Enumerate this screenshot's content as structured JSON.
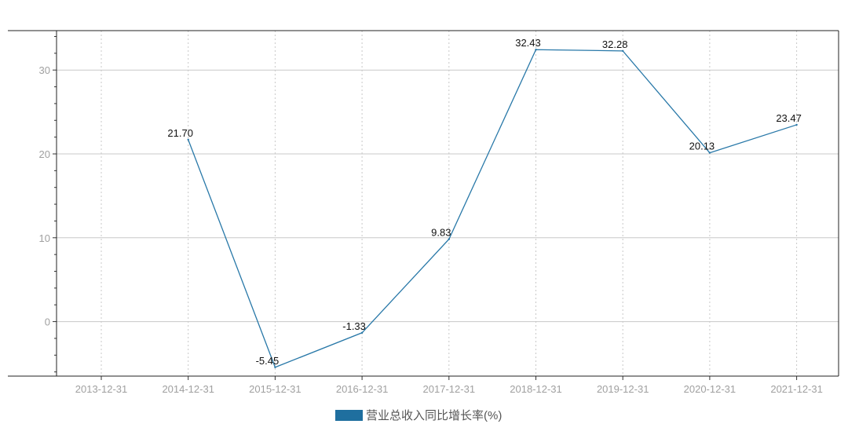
{
  "chart_data": {
    "type": "line",
    "categories": [
      "2013-12-31",
      "2014-12-31",
      "2015-12-31",
      "2016-12-31",
      "2017-12-31",
      "2018-12-31",
      "2019-12-31",
      "2020-12-31",
      "2021-12-31"
    ],
    "series": [
      {
        "name": "营业总收入同比增长率(%)",
        "values": [
          null,
          21.7,
          -5.45,
          -1.33,
          9.83,
          32.43,
          32.28,
          20.13,
          23.47
        ],
        "labels": [
          "",
          "21.70",
          "-5.45",
          "-1.33",
          "9.83",
          "32.43",
          "32.28",
          "20.13",
          "23.47"
        ],
        "color": "#2878a8"
      }
    ],
    "yticks": [
      0,
      10,
      20,
      30
    ],
    "ylim": [
      -6.5,
      34.7
    ],
    "grid": true,
    "legend_position": "bottom-center"
  },
  "legend": {
    "label": "营业总收入同比增长率(%)",
    "color": "#1f6f9f"
  }
}
